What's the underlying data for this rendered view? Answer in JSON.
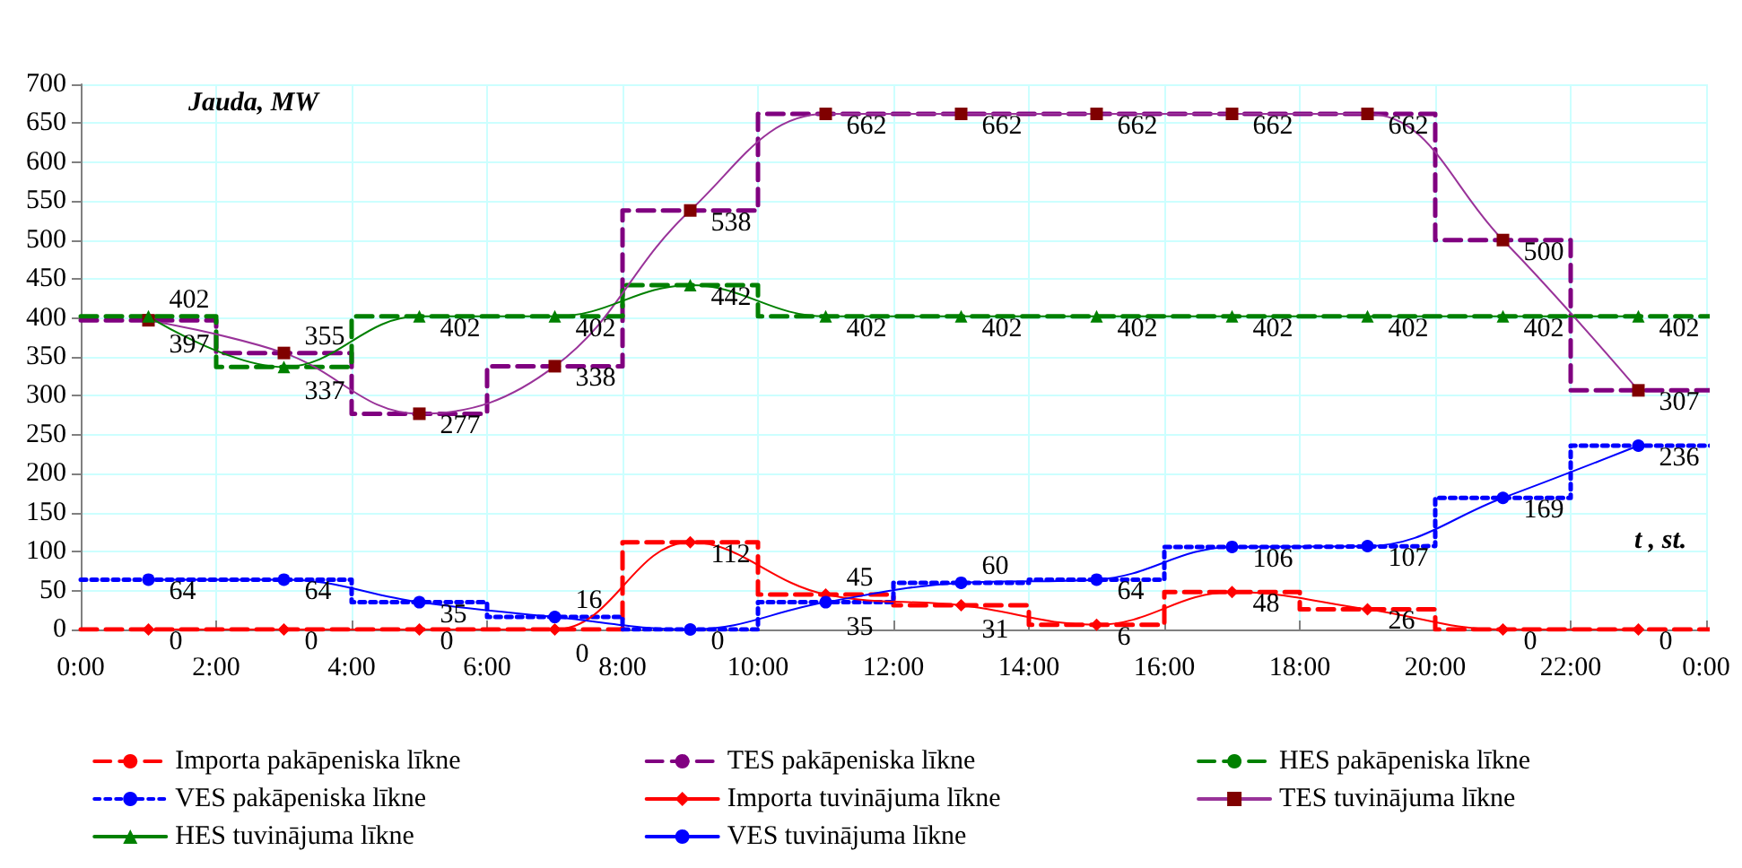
{
  "chart_data": {
    "type": "line",
    "ylabel": "Jauda, MW",
    "xlabel": "t , st.",
    "xlim": [
      0,
      24
    ],
    "ylim": [
      0,
      700
    ],
    "xticks": [
      {
        "value": 0,
        "label": "0:00"
      },
      {
        "value": 2,
        "label": "2:00"
      },
      {
        "value": 4,
        "label": "4:00"
      },
      {
        "value": 6,
        "label": "6:00"
      },
      {
        "value": 8,
        "label": "8:00"
      },
      {
        "value": 10,
        "label": "10:00"
      },
      {
        "value": 12,
        "label": "12:00"
      },
      {
        "value": 14,
        "label": "14:00"
      },
      {
        "value": 16,
        "label": "16:00"
      },
      {
        "value": 18,
        "label": "18:00"
      },
      {
        "value": 20,
        "label": "20:00"
      },
      {
        "value": 22,
        "label": "22:00"
      },
      {
        "value": 24,
        "label": "0:00"
      }
    ],
    "yticks": [
      0,
      50,
      100,
      150,
      200,
      250,
      300,
      350,
      400,
      450,
      500,
      550,
      600,
      650,
      700
    ],
    "grid": true,
    "legend": "bottom",
    "series": [
      {
        "name": "Importa pakāpeniska līkne",
        "type": "step",
        "color": "#ff0000",
        "line_style": "dashed",
        "marker": "none",
        "x": [
          0,
          2,
          4,
          6,
          8,
          10,
          12,
          14,
          16,
          18,
          20,
          22
        ],
        "values": [
          0,
          0,
          0,
          0,
          112,
          45,
          31,
          6,
          48,
          26,
          0,
          0
        ]
      },
      {
        "name": "TES pakāpeniska līkne",
        "type": "step",
        "color": "#800080",
        "line_style": "dashed",
        "marker": "none",
        "x": [
          0,
          2,
          4,
          6,
          8,
          10,
          12,
          14,
          16,
          18,
          20,
          22
        ],
        "values": [
          397,
          355,
          277,
          338,
          538,
          662,
          662,
          662,
          662,
          662,
          500,
          307
        ]
      },
      {
        "name": "HES pakāpeniska līkne",
        "type": "step",
        "color": "#008000",
        "line_style": "dashed",
        "marker": "none",
        "x": [
          0,
          2,
          4,
          6,
          8,
          10,
          12,
          14,
          16,
          18,
          20,
          22
        ],
        "values": [
          402,
          337,
          402,
          402,
          442,
          402,
          402,
          402,
          402,
          402,
          402,
          402
        ]
      },
      {
        "name": "VES pakāpeniska līkne",
        "type": "step",
        "color": "#0000ff",
        "line_style": "dotted",
        "marker": "none",
        "x": [
          0,
          2,
          4,
          6,
          8,
          10,
          12,
          14,
          16,
          18,
          20,
          22
        ],
        "values": [
          64,
          64,
          35,
          16,
          0,
          35,
          60,
          64,
          106,
          107,
          169,
          236
        ]
      },
      {
        "name": "Importa tuvinājuma līkne",
        "type": "line",
        "color": "#ff0000",
        "line_style": "solid",
        "marker": "diamond",
        "x": [
          1,
          3,
          5,
          7,
          9,
          11,
          13,
          15,
          17,
          19,
          21,
          23
        ],
        "values": [
          0,
          0,
          0,
          0,
          112,
          45,
          31,
          6,
          48,
          26,
          0,
          0
        ],
        "value_labels": [
          "0",
          "0",
          "0",
          "0",
          "112",
          "45",
          "31",
          "6",
          "48",
          "26",
          "0",
          "0"
        ]
      },
      {
        "name": "TES tuvinājuma līkne",
        "type": "line",
        "color": "#993399",
        "line_style": "solid",
        "marker": "square",
        "x": [
          1,
          3,
          5,
          7,
          9,
          11,
          13,
          15,
          17,
          19,
          21,
          23
        ],
        "values": [
          397,
          355,
          277,
          338,
          538,
          662,
          662,
          662,
          662,
          662,
          500,
          307
        ],
        "value_labels": [
          "397",
          "355",
          "277",
          "338",
          "538",
          "662",
          "662",
          "662",
          "662",
          "662",
          "500",
          "307"
        ]
      },
      {
        "name": "HES tuvinājuma līkne",
        "type": "line",
        "color": "#008000",
        "line_style": "solid",
        "marker": "triangle",
        "x": [
          1,
          3,
          5,
          7,
          9,
          11,
          13,
          15,
          17,
          19,
          21,
          23
        ],
        "values": [
          402,
          337,
          402,
          402,
          442,
          402,
          402,
          402,
          402,
          402,
          402,
          402
        ],
        "value_labels": [
          "402",
          "337",
          "402",
          "402",
          "442",
          "402",
          "402",
          "402",
          "402",
          "402",
          "402",
          "402"
        ]
      },
      {
        "name": "VES tuvinājuma līkne",
        "type": "line",
        "color": "#0000ff",
        "line_style": "solid",
        "marker": "circle",
        "x": [
          1,
          3,
          5,
          7,
          9,
          11,
          13,
          15,
          17,
          19,
          21,
          23
        ],
        "values": [
          64,
          64,
          35,
          16,
          0,
          35,
          60,
          64,
          106,
          107,
          169,
          236
        ],
        "value_labels": [
          "64",
          "64",
          "35",
          "16",
          "0",
          "35",
          "60",
          "64",
          "106",
          "107",
          "169",
          "236"
        ]
      }
    ]
  }
}
